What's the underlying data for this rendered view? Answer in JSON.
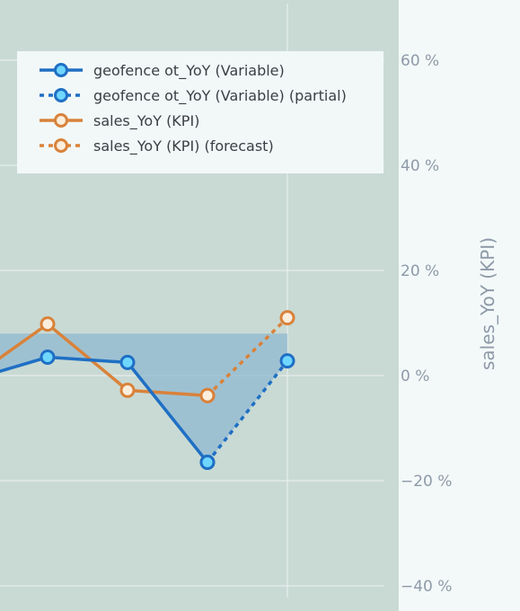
{
  "chart_data": {
    "type": "line",
    "x": [
      1,
      2,
      3,
      4,
      5,
      6
    ],
    "ylabel": "sales_YoY (KPI)",
    "ylim": [
      -45,
      70
    ],
    "y_ticks": [
      {
        "value": 60,
        "label": "60 %"
      },
      {
        "value": 40,
        "label": "40 %"
      },
      {
        "value": 20,
        "label": "20 %"
      },
      {
        "value": 0,
        "label": "0 %"
      },
      {
        "value": -20,
        "label": "−20 %"
      },
      {
        "value": -40,
        "label": "−40 %"
      }
    ],
    "grid": true,
    "legend_position": "top-left",
    "series": [
      {
        "name": "geofence ot_YoY (Variable)",
        "x": [
          1,
          2,
          3,
          4
        ],
        "values": [
          -1,
          3.5,
          2.5,
          -16.5
        ],
        "color": "#1f6fc4",
        "dash": "solid",
        "fill": true
      },
      {
        "name": "geofence ot_YoY (Variable) (partial)",
        "x": [
          4,
          5
        ],
        "values": [
          -16.5,
          2.8
        ],
        "color": "#1f6fc4",
        "dash": "dotted",
        "fill": true
      },
      {
        "name": "sales_YoY (KPI)",
        "x": [
          1,
          2,
          3,
          4
        ],
        "values": [
          -1,
          9.8,
          -2.8,
          -3.8
        ],
        "color": "#d9823a",
        "dash": "solid"
      },
      {
        "name": "sales_YoY (KPI) (forecast)",
        "x": [
          4,
          5
        ],
        "values": [
          -3.8,
          11
        ],
        "color": "#d9823a",
        "dash": "dotted"
      }
    ]
  },
  "colors": {
    "plot_bg": "#c9dad4",
    "page_bg": "#f3f9f9",
    "fill": "#8fb8d2",
    "variable_line": "#1f6fc4",
    "variable_marker": "#6fd7ff",
    "kpi_line": "#d9823a",
    "kpi_marker": "#fbeedd"
  }
}
